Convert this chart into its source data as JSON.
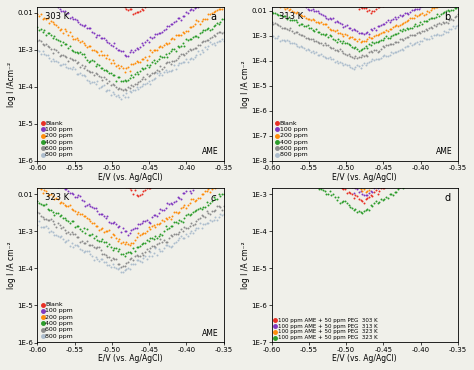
{
  "panels": [
    {
      "label": "a",
      "temp": "303 K",
      "ylabel": "log I /Acm⁻²",
      "ylim_log": [
        -6,
        -2
      ],
      "yticks": [
        -6,
        -5,
        -4,
        -3,
        -2
      ],
      "ytick_labels": [
        "1E-6",
        "1E-5",
        "1E-4",
        "1E-3",
        "0.01"
      ],
      "series_params": [
        {
          "Ec": -0.47,
          "logIc": -2.05,
          "ba": 16.0,
          "bc": 16.0
        },
        {
          "Ec": -0.48,
          "logIc": -3.15,
          "ba": 14.0,
          "bc": 14.0
        },
        {
          "Ec": -0.482,
          "logIc": -3.55,
          "ba": 13.0,
          "bc": 13.0
        },
        {
          "Ec": -0.484,
          "logIc": -3.85,
          "ba": 12.5,
          "bc": 12.5
        },
        {
          "Ec": -0.486,
          "logIc": -4.1,
          "ba": 12.0,
          "bc": 12.0
        },
        {
          "Ec": -0.488,
          "logIc": -4.3,
          "ba": 11.5,
          "bc": 11.5
        }
      ]
    },
    {
      "label": "b",
      "temp": "313 K",
      "ylabel": "log I /A cm⁻²",
      "ylim_log": [
        -8,
        -2
      ],
      "yticks": [
        -8,
        -7,
        -6,
        -5,
        -4,
        -3,
        -2
      ],
      "ytick_labels": [
        "1E-8",
        "1E-7",
        "1E-6",
        "1E-5",
        "1E-4",
        "1E-3",
        "0.01"
      ],
      "series_params": [
        {
          "Ec": -0.468,
          "logIc": -2.05,
          "ba": 16.0,
          "bc": 16.0
        },
        {
          "Ec": -0.478,
          "logIc": -2.95,
          "ba": 14.5,
          "bc": 14.5
        },
        {
          "Ec": -0.48,
          "logIc": -3.25,
          "ba": 13.5,
          "bc": 13.5
        },
        {
          "Ec": -0.482,
          "logIc": -3.55,
          "ba": 13.0,
          "bc": 13.0
        },
        {
          "Ec": -0.485,
          "logIc": -3.9,
          "ba": 12.5,
          "bc": 12.5
        },
        {
          "Ec": -0.49,
          "logIc": -4.3,
          "ba": 12.0,
          "bc": 12.0
        }
      ]
    },
    {
      "label": "c",
      "temp": "323 K",
      "ylabel": "log I /A cm⁻²",
      "ylim_log": [
        -6,
        -2
      ],
      "yticks": [
        -6,
        -5,
        -4,
        -3,
        -2
      ],
      "ytick_labels": [
        "1E-6",
        "1E-5",
        "1E-4",
        "1E-3",
        "0.01"
      ],
      "series_params": [
        {
          "Ec": -0.465,
          "logIc": -2.05,
          "ba": 16.0,
          "bc": 16.0
        },
        {
          "Ec": -0.478,
          "logIc": -3.05,
          "ba": 14.0,
          "bc": 14.0
        },
        {
          "Ec": -0.481,
          "logIc": -3.35,
          "ba": 13.0,
          "bc": 13.0
        },
        {
          "Ec": -0.483,
          "logIc": -3.65,
          "ba": 12.5,
          "bc": 12.5
        },
        {
          "Ec": -0.485,
          "logIc": -3.9,
          "ba": 12.0,
          "bc": 12.0
        },
        {
          "Ec": -0.487,
          "logIc": -4.1,
          "ba": 11.5,
          "bc": 11.5
        }
      ]
    },
    {
      "label": "d",
      "temp": null,
      "ylabel": "log I /A cm⁻²",
      "ylim_log": [
        -7,
        -3
      ],
      "yticks": [
        -7,
        -6,
        -5,
        -4,
        -3
      ],
      "ytick_labels": [
        "1E-7",
        "1E-6",
        "1E-5",
        "1E-4",
        "1E-3"
      ],
      "series_params": [
        {
          "Ec": -0.478,
          "logIc": -3.2,
          "ba": 13.5,
          "bc": 13.5
        },
        {
          "Ec": -0.476,
          "logIc": -3.05,
          "ba": 14.0,
          "bc": 14.0
        },
        {
          "Ec": -0.475,
          "logIc": -2.95,
          "ba": 14.5,
          "bc": 14.5
        },
        {
          "Ec": -0.48,
          "logIc": -3.5,
          "ba": 12.5,
          "bc": 12.5
        }
      ]
    }
  ],
  "series_colors_abc": [
    "#e8251a",
    "#7b2fbe",
    "#ff8800",
    "#229922",
    "#888888",
    "#aabbcc"
  ],
  "series_labels_abc": [
    "Blank",
    "100 ppm",
    "200 ppm",
    "400 ppm",
    "600 ppm",
    "800 ppm"
  ],
  "series_colors_d": [
    "#e8251a",
    "#7b2fbe",
    "#ff8800",
    "#229922"
  ],
  "series_labels_d": [
    "100 ppm AME + 50 ppm PEG  303 K",
    "100 ppm AME + 50 ppm PEG  313 K",
    "100 ppm AME + 50 ppm PEG  323 K",
    "100 ppm AME + 50 ppm PEG  323 K"
  ],
  "xlabel": "E/V (vs. Ag/AgCl)",
  "xlim": [
    -0.6,
    -0.35
  ],
  "xticks": [
    -0.6,
    -0.55,
    -0.5,
    -0.45,
    -0.4,
    -0.35
  ],
  "bg_color": "#f0f0ea"
}
